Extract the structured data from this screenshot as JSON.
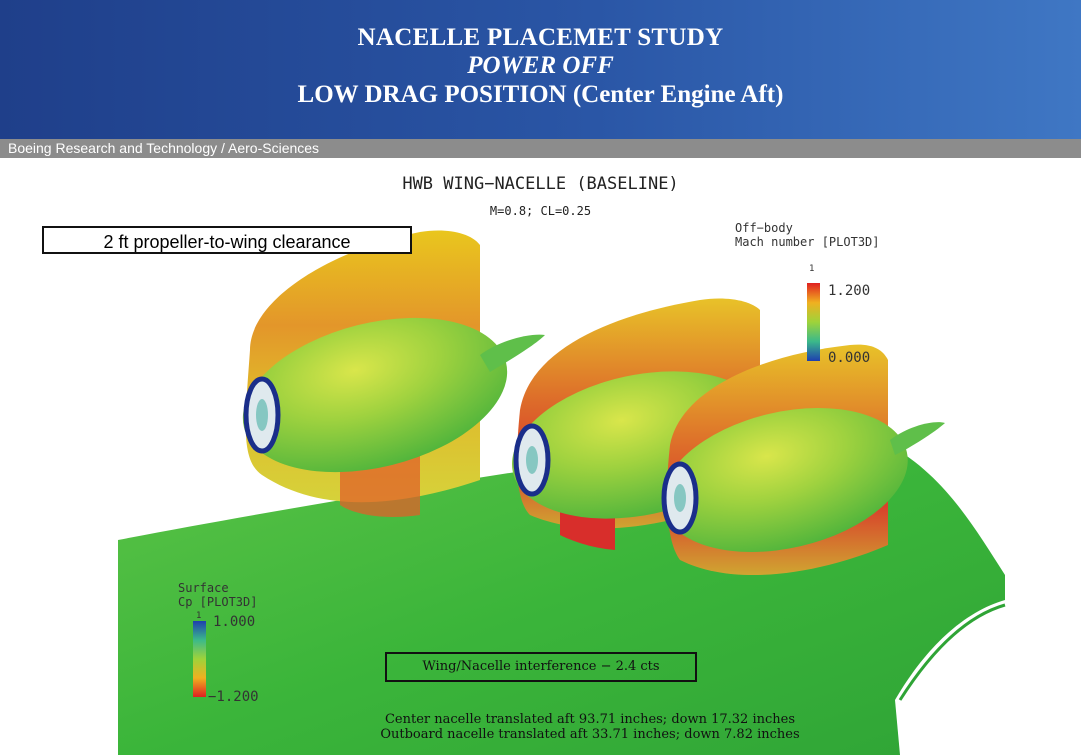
{
  "header": {
    "line1": "NACELLE PLACEMET STUDY",
    "line2": "POWER OFF",
    "line3": "LOW DRAG POSITION (Center Engine Aft)",
    "subtitle": "Boeing Research and Technology / Aero-Sciences"
  },
  "plot": {
    "title": "HWB WING−NACELLE (BASELINE)",
    "conditions": "M=0.8; CL=0.25"
  },
  "callouts": {
    "clearance": "2 ft propeller-to-wing clearance",
    "interference": "Wing/Nacelle interference − 2.4 cts",
    "center_note": "Center nacelle translated aft 93.71 inches; down 17.32 inches",
    "outboard_note": "Outboard nacelle translated aft 33.71 inches; down 7.82 inches"
  },
  "legend_offbody": {
    "title_line1": "Off−body",
    "title_line2": "Mach number [PLOT3D]",
    "index": "1",
    "max": "1.200",
    "min": "0.000"
  },
  "legend_surface": {
    "title_line1": "Surface",
    "title_line2": "Cp [PLOT3D]",
    "index": "1",
    "max": "1.000",
    "min": "−1.200"
  },
  "colors": {
    "header_blue": "#2a56a6",
    "subbar_gray": "#8c8c8c",
    "surface_green": "#3cb83a"
  }
}
